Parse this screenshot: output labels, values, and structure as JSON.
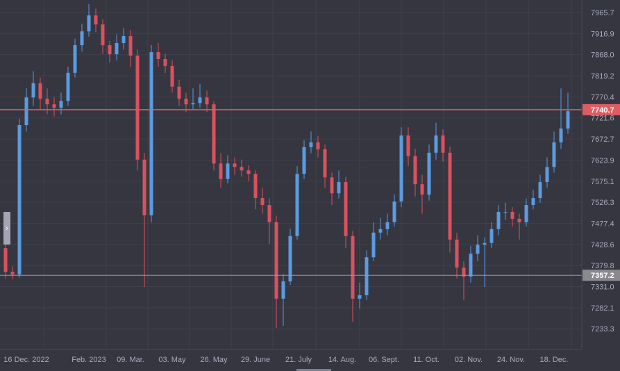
{
  "chart_data": {
    "type": "candlestick",
    "title": "",
    "colors": {
      "up": "#5b9be0",
      "down": "#d9525e",
      "background": "#363641",
      "grid": "#40404c",
      "last_price_line": "#e05c64",
      "reference_line": "#9a9a9a"
    },
    "ylim": [
      7200,
      7990
    ],
    "y_ticks": [
      "7965.7",
      "7916.9",
      "7868.0",
      "7819.2",
      "7770.4",
      "7721.6",
      "7672.7",
      "7623.9",
      "7575.1",
      "7526.3",
      "7477.4",
      "7428.6",
      "7379.8",
      "7331.0",
      "7282.1",
      "7233.3"
    ],
    "x_ticks": [
      "16 Dec. 2022",
      "Feb. 2023",
      "09. Mar.",
      "03. May",
      "26. May",
      "29. June",
      "21. July",
      "14. Aug.",
      "06. Sept.",
      "11. Oct.",
      "02. Nov.",
      "24. Nov.",
      "18. Dec."
    ],
    "last_price": {
      "value": 7740.7,
      "label": "7740.7"
    },
    "reference_price": {
      "value": 7357.2,
      "label": "7357.2"
    },
    "grid": true,
    "ohlc": [
      [
        7420,
        7430,
        7350,
        7365
      ],
      [
        7365,
        7378,
        7348,
        7359
      ],
      [
        7359,
        7720,
        7352,
        7705
      ],
      [
        7705,
        7790,
        7690,
        7769
      ],
      [
        7769,
        7830,
        7750,
        7802
      ],
      [
        7802,
        7815,
        7740,
        7766
      ],
      [
        7766,
        7790,
        7730,
        7753
      ],
      [
        7753,
        7770,
        7725,
        7745
      ],
      [
        7745,
        7780,
        7730,
        7761
      ],
      [
        7761,
        7840,
        7750,
        7826
      ],
      [
        7826,
        7905,
        7815,
        7890
      ],
      [
        7890,
        7940,
        7875,
        7922
      ],
      [
        7922,
        7985,
        7910,
        7959
      ],
      [
        7959,
        7975,
        7920,
        7938
      ],
      [
        7938,
        7950,
        7870,
        7890
      ],
      [
        7890,
        7900,
        7850,
        7869
      ],
      [
        7869,
        7915,
        7855,
        7895
      ],
      [
        7895,
        7930,
        7880,
        7911
      ],
      [
        7911,
        7925,
        7840,
        7866
      ],
      [
        7866,
        7880,
        7600,
        7625
      ],
      [
        7625,
        7640,
        7330,
        7496
      ],
      [
        7496,
        7890,
        7480,
        7874
      ],
      [
        7874,
        7895,
        7840,
        7858
      ],
      [
        7858,
        7870,
        7825,
        7842
      ],
      [
        7842,
        7855,
        7780,
        7794
      ],
      [
        7794,
        7810,
        7750,
        7766
      ],
      [
        7766,
        7780,
        7735,
        7753
      ],
      [
        7753,
        7790,
        7740,
        7756
      ],
      [
        7756,
        7800,
        7745,
        7769
      ],
      [
        7769,
        7785,
        7735,
        7753
      ],
      [
        7753,
        7760,
        7600,
        7616
      ],
      [
        7616,
        7640,
        7560,
        7580
      ],
      [
        7580,
        7635,
        7570,
        7616
      ],
      [
        7616,
        7630,
        7590,
        7608
      ],
      [
        7608,
        7625,
        7585,
        7600
      ],
      [
        7600,
        7612,
        7575,
        7592
      ],
      [
        7592,
        7600,
        7510,
        7536
      ],
      [
        7536,
        7560,
        7500,
        7520
      ],
      [
        7520,
        7535,
        7430,
        7480
      ],
      [
        7480,
        7495,
        7235,
        7303
      ],
      [
        7303,
        7360,
        7240,
        7343
      ],
      [
        7343,
        7465,
        7335,
        7448
      ],
      [
        7448,
        7610,
        7440,
        7592
      ],
      [
        7592,
        7670,
        7580,
        7654
      ],
      [
        7654,
        7690,
        7640,
        7665
      ],
      [
        7665,
        7680,
        7630,
        7649
      ],
      [
        7649,
        7660,
        7560,
        7584
      ],
      [
        7584,
        7595,
        7520,
        7547
      ],
      [
        7547,
        7600,
        7535,
        7573
      ],
      [
        7573,
        7585,
        7420,
        7448
      ],
      [
        7448,
        7460,
        7250,
        7303
      ],
      [
        7303,
        7340,
        7280,
        7311
      ],
      [
        7311,
        7415,
        7300,
        7399
      ],
      [
        7399,
        7480,
        7390,
        7456
      ],
      [
        7456,
        7490,
        7440,
        7464
      ],
      [
        7464,
        7500,
        7450,
        7480
      ],
      [
        7480,
        7545,
        7470,
        7528
      ],
      [
        7528,
        7700,
        7515,
        7681
      ],
      [
        7681,
        7700,
        7610,
        7633
      ],
      [
        7633,
        7650,
        7540,
        7568
      ],
      [
        7568,
        7590,
        7500,
        7544
      ],
      [
        7544,
        7660,
        7530,
        7641
      ],
      [
        7641,
        7710,
        7625,
        7681
      ],
      [
        7681,
        7695,
        7620,
        7641
      ],
      [
        7641,
        7655,
        7410,
        7440
      ],
      [
        7440,
        7455,
        7350,
        7375
      ],
      [
        7375,
        7390,
        7300,
        7354
      ],
      [
        7354,
        7425,
        7340,
        7407
      ],
      [
        7407,
        7450,
        7390,
        7428
      ],
      [
        7428,
        7445,
        7330,
        7432
      ],
      [
        7432,
        7480,
        7420,
        7464
      ],
      [
        7464,
        7520,
        7450,
        7504
      ],
      [
        7504,
        7525,
        7485,
        7504
      ],
      [
        7504,
        7515,
        7470,
        7488
      ],
      [
        7488,
        7500,
        7440,
        7480
      ],
      [
        7480,
        7535,
        7470,
        7520
      ],
      [
        7520,
        7555,
        7510,
        7536
      ],
      [
        7536,
        7590,
        7525,
        7573
      ],
      [
        7573,
        7630,
        7560,
        7608
      ],
      [
        7608,
        7690,
        7595,
        7665
      ],
      [
        7665,
        7790,
        7650,
        7697
      ],
      [
        7697,
        7780,
        7685,
        7737
      ]
    ]
  },
  "ui": {
    "expand_handle_label": "›"
  }
}
